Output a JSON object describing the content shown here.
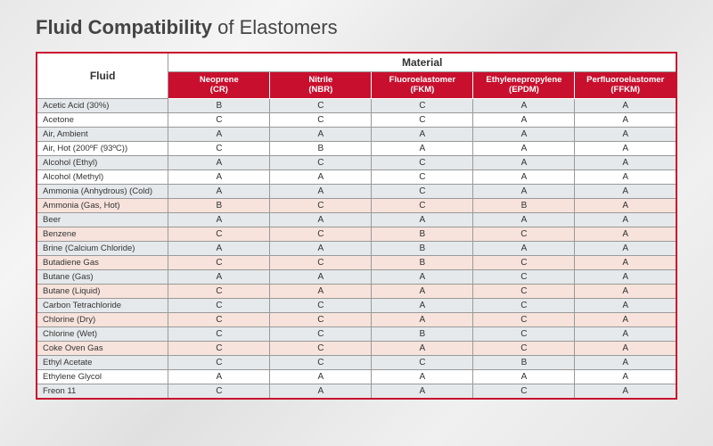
{
  "title_bold": "Fluid Compatibility",
  "title_rest": " of Elastomers",
  "header": {
    "fluid": "Fluid",
    "material": "Material",
    "columns": [
      {
        "name": "Neoprene",
        "abbr": "(CR)"
      },
      {
        "name": "Nitrile",
        "abbr": "(NBR)"
      },
      {
        "name": "Fluoroelastomer",
        "abbr": "(FKM)"
      },
      {
        "name": "Ethylenepropylene",
        "abbr": "(EPDM)"
      },
      {
        "name": "Perfluoroelastomer",
        "abbr": "(FFKM)"
      }
    ]
  },
  "row_colors": {
    "gray": "#e6e9eb",
    "white": "#ffffff",
    "pink": "#f7e3dc",
    "header_red": "#c8102e"
  },
  "rows": [
    {
      "fluid": "Acetic Acid (30%)",
      "vals": [
        "B",
        "C",
        "C",
        "A",
        "A"
      ],
      "tone": "gray"
    },
    {
      "fluid": "Acetone",
      "vals": [
        "C",
        "C",
        "C",
        "A",
        "A"
      ],
      "tone": "white"
    },
    {
      "fluid": "Air, Ambient",
      "vals": [
        "A",
        "A",
        "A",
        "A",
        "A"
      ],
      "tone": "gray"
    },
    {
      "fluid": "Air, Hot (200ºF (93ºC))",
      "vals": [
        "C",
        "B",
        "A",
        "A",
        "A"
      ],
      "tone": "white"
    },
    {
      "fluid": "Alcohol (Ethyl)",
      "vals": [
        "A",
        "C",
        "C",
        "A",
        "A"
      ],
      "tone": "gray"
    },
    {
      "fluid": "Alcohol (Methyl)",
      "vals": [
        "A",
        "A",
        "C",
        "A",
        "A"
      ],
      "tone": "white"
    },
    {
      "fluid": "Ammonia (Anhydrous) (Cold)",
      "vals": [
        "A",
        "A",
        "C",
        "A",
        "A"
      ],
      "tone": "gray"
    },
    {
      "fluid": "Ammonia (Gas, Hot)",
      "vals": [
        "B",
        "C",
        "C",
        "B",
        "A"
      ],
      "tone": "pink"
    },
    {
      "fluid": "Beer",
      "vals": [
        "A",
        "A",
        "A",
        "A",
        "A"
      ],
      "tone": "gray"
    },
    {
      "fluid": "Benzene",
      "vals": [
        "C",
        "C",
        "B",
        "C",
        "A"
      ],
      "tone": "pink"
    },
    {
      "fluid": "Brine (Calcium Chloride)",
      "vals": [
        "A",
        "A",
        "B",
        "A",
        "A"
      ],
      "tone": "gray"
    },
    {
      "fluid": "Butadiene Gas",
      "vals": [
        "C",
        "C",
        "B",
        "C",
        "A"
      ],
      "tone": "pink"
    },
    {
      "fluid": "Butane (Gas)",
      "vals": [
        "A",
        "A",
        "A",
        "C",
        "A"
      ],
      "tone": "gray"
    },
    {
      "fluid": "Butane (Liquid)",
      "vals": [
        "C",
        "A",
        "A",
        "C",
        "A"
      ],
      "tone": "pink"
    },
    {
      "fluid": "Carbon Tetrachloride",
      "vals": [
        "C",
        "C",
        "A",
        "C",
        "A"
      ],
      "tone": "gray"
    },
    {
      "fluid": "Chlorine (Dry)",
      "vals": [
        "C",
        "C",
        "A",
        "C",
        "A"
      ],
      "tone": "pink"
    },
    {
      "fluid": "Chlorine (Wet)",
      "vals": [
        "C",
        "C",
        "B",
        "C",
        "A"
      ],
      "tone": "gray"
    },
    {
      "fluid": "Coke Oven Gas",
      "vals": [
        "C",
        "C",
        "A",
        "C",
        "A"
      ],
      "tone": "pink"
    },
    {
      "fluid": "Ethyl Acetate",
      "vals": [
        "C",
        "C",
        "C",
        "B",
        "A"
      ],
      "tone": "gray"
    },
    {
      "fluid": "Ethylene Glycol",
      "vals": [
        "A",
        "A",
        "A",
        "A",
        "A"
      ],
      "tone": "white"
    },
    {
      "fluid": "Freon 11",
      "vals": [
        "C",
        "A",
        "A",
        "C",
        "A"
      ],
      "tone": "gray"
    }
  ]
}
